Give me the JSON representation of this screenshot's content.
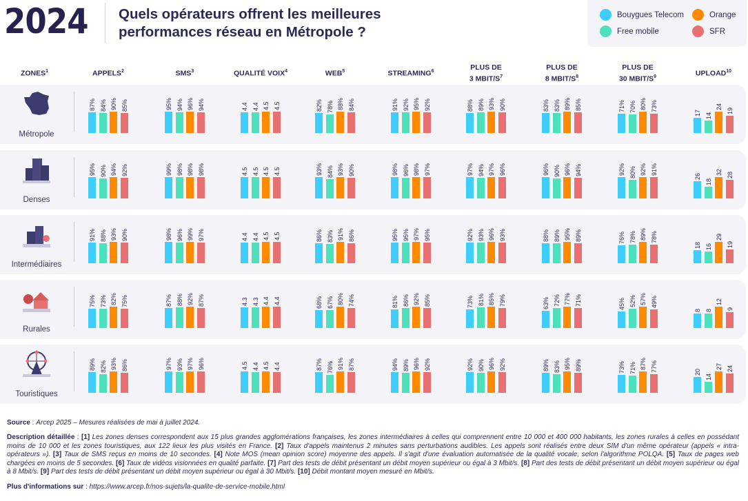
{
  "header": {
    "year": "2024",
    "title_line1": "Quels opérateurs offrent les meilleures",
    "title_line2": "performances réseau en Métropole ?"
  },
  "legend": [
    {
      "name": "Bouygues Telecom",
      "color": "#3ecdfc"
    },
    {
      "name": "Orange",
      "color": "#ff8a00"
    },
    {
      "name": "Free mobile",
      "color": "#4ce0bd"
    },
    {
      "name": "SFR",
      "color": "#e87070"
    }
  ],
  "chart_data": {
    "type": "bar",
    "series_order": [
      "Bouygues Telecom",
      "Free mobile",
      "Orange",
      "SFR"
    ],
    "colors": [
      "#3ecdfc",
      "#4ce0bd",
      "#ff8a00",
      "#e87070"
    ],
    "zones_header": {
      "label": "ZONES",
      "sup": "1"
    },
    "metrics": [
      {
        "label": "APPELS",
        "sup": "2",
        "unit": "%"
      },
      {
        "label": "SMS",
        "sup": "3",
        "unit": "%"
      },
      {
        "label": "QUALITÉ VOIX",
        "sup": "4",
        "unit": ""
      },
      {
        "label": "WEB",
        "sup": "5",
        "unit": "%"
      },
      {
        "label": "STREAMING",
        "sup": "6",
        "unit": "%"
      },
      {
        "label": "PLUS DE\n3 MBIT/S",
        "sup": "7",
        "unit": "%"
      },
      {
        "label": "PLUS DE\n8 MBIT/S",
        "sup": "8",
        "unit": "%"
      },
      {
        "label": "PLUS DE\n30 MBIT/S",
        "sup": "9",
        "unit": "%"
      },
      {
        "label": "UPLOAD",
        "sup": "10",
        "unit": ""
      }
    ],
    "zones": [
      {
        "name": "Métropole",
        "icon": "france-map-icon",
        "values": [
          [
            "87",
            "84",
            "90",
            "85"
          ],
          [
            "95",
            "94",
            "96",
            "94"
          ],
          [
            "4.4",
            "4.4",
            "4.5",
            "4.5"
          ],
          [
            "82",
            "78",
            "88",
            "84"
          ],
          [
            "91",
            "92",
            "95",
            "92"
          ],
          [
            "88",
            "89",
            "93",
            "90"
          ],
          [
            "83",
            "83",
            "89",
            "85"
          ],
          [
            "71",
            "70",
            "80",
            "73"
          ],
          [
            "17",
            "14",
            "24",
            "19"
          ]
        ]
      },
      {
        "name": "Denses",
        "icon": "dense-city-icon",
        "values": [
          [
            "95",
            "90",
            "94",
            "92"
          ],
          [
            "99",
            "98",
            "98",
            "98"
          ],
          [
            "4.5",
            "4.5",
            "4.5",
            "4.5"
          ],
          [
            "93",
            "84",
            "93",
            "90"
          ],
          [
            "98",
            "96",
            "98",
            "97"
          ],
          [
            "97",
            "94",
            "97",
            "96"
          ],
          [
            "96",
            "90",
            "96",
            "94"
          ],
          [
            "92",
            "80",
            "92",
            "91"
          ],
          [
            "26",
            "18",
            "32",
            "28"
          ]
        ]
      },
      {
        "name": "Intermédiaires",
        "icon": "town-icon",
        "values": [
          [
            "91",
            "88",
            "93",
            "90"
          ],
          [
            "98",
            "96",
            "99",
            "97"
          ],
          [
            "4.4",
            "4.4",
            "4.5",
            "4.5"
          ],
          [
            "86",
            "83",
            "91",
            "86"
          ],
          [
            "95",
            "95",
            "97",
            "95"
          ],
          [
            "92",
            "93",
            "96",
            "93"
          ],
          [
            "88",
            "89",
            "95",
            "89"
          ],
          [
            "76",
            "78",
            "89",
            "78"
          ],
          [
            "18",
            "16",
            "29",
            "19"
          ]
        ]
      },
      {
        "name": "Rurales",
        "icon": "rural-house-icon",
        "values": [
          [
            "75",
            "73",
            "82",
            "75"
          ],
          [
            "87",
            "88",
            "92",
            "87"
          ],
          [
            "4.3",
            "4.3",
            "4.4",
            "4.4"
          ],
          [
            "68",
            "67",
            "80",
            "74"
          ],
          [
            "81",
            "86",
            "92",
            "85"
          ],
          [
            "73",
            "81",
            "85",
            "79"
          ],
          [
            "63",
            "72",
            "77",
            "71"
          ],
          [
            "45",
            "52",
            "57",
            "49"
          ],
          [
            "8",
            "8",
            "12",
            "9"
          ]
        ]
      },
      {
        "name": "Touristiques",
        "icon": "ferris-wheel-icon",
        "values": [
          [
            "89",
            "82",
            "93",
            "86"
          ],
          [
            "97",
            "93",
            "97",
            "96"
          ],
          [
            "4.5",
            "4.4",
            "4.5",
            "4.4"
          ],
          [
            "87",
            "76",
            "91",
            "87"
          ],
          [
            "94",
            "89",
            "96",
            "92"
          ],
          [
            "92",
            "90",
            "96",
            "92"
          ],
          [
            "89",
            "83",
            "95",
            "89"
          ],
          [
            "73",
            "71",
            "87",
            "77"
          ],
          [
            "20",
            "14",
            "27",
            "24"
          ]
        ]
      }
    ]
  },
  "footer": {
    "source_label": "Source",
    "source_text": "Arcep 2025 – Mesures réalisées de mai à juillet 2024.",
    "description_label": "Description détaillée",
    "notes": [
      {
        "ref": "[1]",
        "text": "Les zones denses correspondent aux 15 plus grandes agglomérations françaises, les zones intermédiaires à celles qui comprennent entre 10 000 et 400 000 habitants, les zones rurales à celles en possédant moins de 10 000 et les zones touristiques, aux 122 lieux les plus visités en France."
      },
      {
        "ref": "[2]",
        "text": "Taux d'appels maintenus 2 minutes sans perturbations audibles. Les appels sont réalisés entre deux SIM d'un même opérateur (appels « intra-opérateurs »)."
      },
      {
        "ref": "[3]",
        "text": "Taux de SMS reçus en moins de 10 secondes."
      },
      {
        "ref": "[4]",
        "text": "Note MOS (mean opinion score) moyenne des appels. Il s'agit d'une évaluation automatisée de la qualité vocale, selon l'algorithme POLQA."
      },
      {
        "ref": "[5]",
        "text": "Taux de pages web chargées en moins de 5 secondes."
      },
      {
        "ref": "[6]",
        "text": "Taux de vidéos visionnées en qualité parfaite."
      },
      {
        "ref": "[7]",
        "text": "Part des tests de débit présentant un débit moyen supérieur ou égal à 3 Mbit/s."
      },
      {
        "ref": "[8]",
        "text": "Part des tests de débit présentant un débit moyen supérieur ou égal à 8 Mbit/s."
      },
      {
        "ref": "[9]",
        "text": "Part des tests de débit présentant un débit moyen supérieur ou égal à 30 Mbit/s."
      },
      {
        "ref": "[10]",
        "text": "Débit montant moyen mesuré en Mbit/s."
      }
    ],
    "more_label": "Plus d'informations sur",
    "more_url": "https://www.arcep.fr/nos-sujets/la-qualite-de-service-mobile.html"
  }
}
